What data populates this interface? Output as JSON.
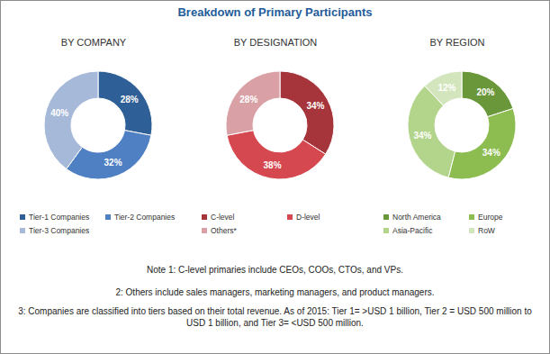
{
  "title": "Breakdown of Primary Participants",
  "chart_data": [
    {
      "type": "pie",
      "title": "BY COMPANY",
      "categories": [
        "Tier-1 Companies",
        "Tier-2 Companies",
        "Tier-3 Companies"
      ],
      "values": [
        28,
        32,
        40
      ],
      "value_labels": [
        "28%",
        "32%",
        "40%"
      ],
      "colors": [
        "#2f5f97",
        "#4f80c4",
        "#a7b9d9"
      ],
      "data_labels": true,
      "legend": "bottom"
    },
    {
      "type": "pie",
      "title": "BY DESIGNATION",
      "categories": [
        "C-level",
        "D-level",
        "Others*"
      ],
      "values": [
        34,
        38,
        28
      ],
      "value_labels": [
        "34%",
        "38%",
        "28%"
      ],
      "colors": [
        "#a6353b",
        "#d6484f",
        "#d9a1a5"
      ],
      "data_labels": true,
      "legend": "bottom"
    },
    {
      "type": "pie",
      "title": "BY REGION",
      "categories": [
        "North America",
        "Europe",
        "Asia-Pacific",
        "RoW"
      ],
      "values": [
        20,
        34,
        34,
        12
      ],
      "value_labels": [
        "20%",
        "34%",
        "34%",
        "12%"
      ],
      "colors": [
        "#6b973b",
        "#8dbd50",
        "#b3d58b",
        "#d3e5bd"
      ],
      "data_labels": true,
      "legend": "bottom"
    }
  ],
  "notes": [
    "Note 1: C-level primaries include CEOs, COOs, CTOs, and VPs.",
    "2: Others include sales managers, marketing managers, and product managers.",
    "3: Companies are classified into tiers based on their total revenue. As of 2015: Tier 1= >USD 1 billion, Tier 2 = USD 500 million to USD 1 billion, and Tier 3= <USD 500 million."
  ]
}
